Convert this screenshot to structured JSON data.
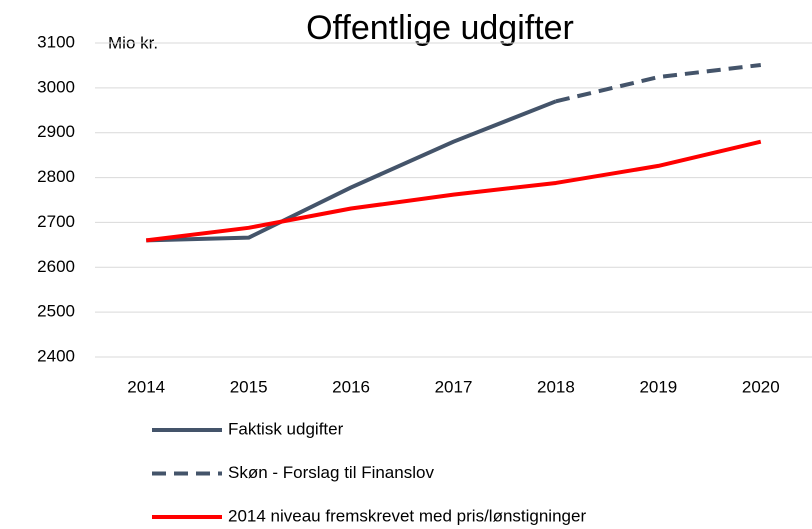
{
  "chart_data": {
    "type": "line",
    "title": "Offentlige udgifter",
    "y_unit_label": "Mio kr.",
    "categories": [
      "2014",
      "2015",
      "2016",
      "2017",
      "2018",
      "2019",
      "2020"
    ],
    "series": [
      {
        "name": "Faktisk udgifter",
        "color": "#44546a",
        "style": "solid",
        "values": [
          2660,
          2666,
          2778,
          2880,
          2970,
          null,
          null
        ]
      },
      {
        "name": "Skøn - Forslag til Finanslov",
        "color": "#44546a",
        "style": "dashed",
        "values": [
          null,
          null,
          null,
          null,
          2970,
          3024,
          3051
        ]
      },
      {
        "name": "2014 niveau fremskrevet med pris/lønstigninger",
        "color": "#ff0000",
        "style": "solid",
        "values": [
          2660,
          2688,
          2731,
          2762,
          2788,
          2826,
          2880
        ]
      }
    ],
    "ylim": [
      2400,
      3100
    ],
    "yticks": [
      2400,
      2500,
      2600,
      2700,
      2800,
      2900,
      3000,
      3100
    ],
    "grid": true
  }
}
